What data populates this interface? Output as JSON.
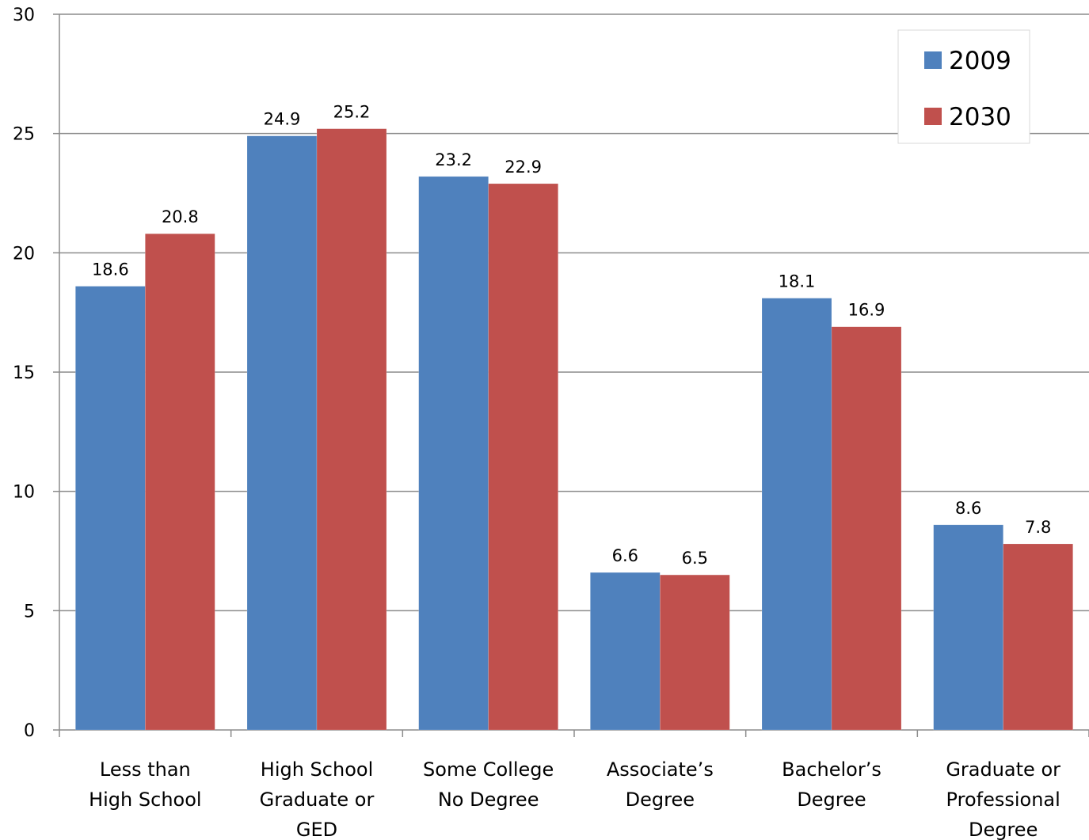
{
  "chart_data": {
    "type": "bar",
    "categories": [
      [
        "Less than",
        "High School"
      ],
      [
        "High School",
        "Graduate or",
        "GED"
      ],
      [
        "Some College",
        "No Degree"
      ],
      [
        "Associate’s",
        "Degree"
      ],
      [
        "Bachelor’s",
        "Degree"
      ],
      [
        "Graduate or",
        "Professional",
        "Degree"
      ]
    ],
    "series": [
      {
        "name": "2009",
        "color": "#4F81BD",
        "values": [
          18.6,
          24.9,
          23.2,
          6.6,
          18.1,
          8.6
        ]
      },
      {
        "name": "2030",
        "color": "#C0504D",
        "values": [
          20.8,
          25.2,
          22.9,
          6.5,
          16.9,
          7.8
        ]
      }
    ],
    "data_labels": [
      [
        "18.6",
        "24.9",
        "23.2",
        "6.6",
        "18.1",
        "8.6"
      ],
      [
        "20.8",
        "25.2",
        "22.9",
        "6.5",
        "16.9",
        "7.8"
      ]
    ],
    "y_ticks": [
      0,
      5,
      10,
      15,
      20,
      25,
      30
    ],
    "ylim": [
      0,
      30
    ],
    "grid": true,
    "legend_position": "top-right",
    "title": "",
    "xlabel": "",
    "ylabel": ""
  }
}
